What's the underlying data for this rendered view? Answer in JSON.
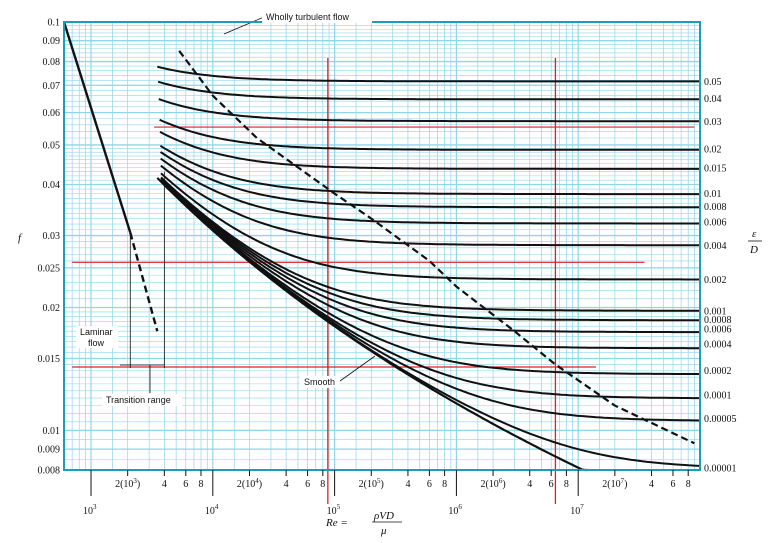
{
  "chart_data": {
    "type": "line",
    "title": "",
    "xscale": "log",
    "yscale": "log",
    "xlim": [
      600,
      100000000
    ],
    "ylim": [
      0.008,
      0.1
    ],
    "grid": true,
    "xlabel": "Re =",
    "xlabel_fraction": {
      "numerator": "ρVD",
      "denominator": "μ"
    },
    "ylabel": "f",
    "right_label": {
      "numerator": "ε",
      "denominator": "D"
    },
    "x_decade_labels": [
      {
        "x": 1000,
        "mantissa": "10",
        "exp": "3"
      },
      {
        "x": 10000,
        "mantissa": "10",
        "exp": "4"
      },
      {
        "x": 100000,
        "mantissa": "10",
        "exp": "5"
      },
      {
        "x": 1000000,
        "mantissa": "10",
        "exp": "6"
      },
      {
        "x": 10000000,
        "mantissa": "10",
        "exp": "7"
      }
    ],
    "x_sub_labels": [
      {
        "x": 2000,
        "text": "2(10",
        "exp": "3",
        "close": ")"
      },
      {
        "x": 4000,
        "text": "4"
      },
      {
        "x": 6000,
        "text": "6"
      },
      {
        "x": 8000,
        "text": "8"
      },
      {
        "x": 20000,
        "text": "2(10",
        "exp": "4",
        "close": ")"
      },
      {
        "x": 40000,
        "text": "4"
      },
      {
        "x": 60000,
        "text": "6"
      },
      {
        "x": 80000,
        "text": "8"
      },
      {
        "x": 200000,
        "text": "2(10",
        "exp": "5",
        "close": ")"
      },
      {
        "x": 400000,
        "text": "4"
      },
      {
        "x": 600000,
        "text": "6"
      },
      {
        "x": 800000,
        "text": "8"
      },
      {
        "x": 2000000,
        "text": "2(10",
        "exp": "6",
        "close": ")"
      },
      {
        "x": 4000000,
        "text": "4"
      },
      {
        "x": 6000000,
        "text": "6"
      },
      {
        "x": 8000000,
        "text": "8"
      },
      {
        "x": 20000000,
        "text": "2(10",
        "exp": "7",
        "close": ")"
      },
      {
        "x": 40000000,
        "text": "4"
      },
      {
        "x": 60000000,
        "text": "6"
      },
      {
        "x": 80000000,
        "text": "8"
      }
    ],
    "y_ticks": [
      {
        "v": 0.1,
        "label": "0.1"
      },
      {
        "v": 0.09,
        "label": "0.09"
      },
      {
        "v": 0.08,
        "label": "0.08"
      },
      {
        "v": 0.07,
        "label": "0.07"
      },
      {
        "v": 0.06,
        "label": "0.06"
      },
      {
        "v": 0.05,
        "label": "0.05"
      },
      {
        "v": 0.04,
        "label": "0.04"
      },
      {
        "v": 0.03,
        "label": "0.03"
      },
      {
        "v": 0.025,
        "label": "0.025"
      },
      {
        "v": 0.02,
        "label": "0.02"
      },
      {
        "v": 0.015,
        "label": "0.015"
      },
      {
        "v": 0.01,
        "label": "0.01"
      },
      {
        "v": 0.009,
        "label": "0.009"
      },
      {
        "v": 0.008,
        "label": "0.008"
      }
    ],
    "roughness_labels": [
      {
        "eps": 0.05,
        "label": "0.05",
        "f": 0.0716
      },
      {
        "eps": 0.04,
        "label": "0.04",
        "f": 0.065
      },
      {
        "eps": 0.03,
        "label": "0.03",
        "f": 0.0571
      },
      {
        "eps": 0.02,
        "label": "0.02",
        "f": 0.0489
      },
      {
        "eps": 0.015,
        "label": "0.015",
        "f": 0.0439
      },
      {
        "eps": 0.01,
        "label": "0.01",
        "f": 0.038
      },
      {
        "eps": 0.008,
        "label": "0.008",
        "f": 0.0353
      },
      {
        "eps": 0.006,
        "label": "0.006",
        "f": 0.0324
      },
      {
        "eps": 0.004,
        "label": "0.004",
        "f": 0.0284
      },
      {
        "eps": 0.002,
        "label": "0.002",
        "f": 0.0234
      },
      {
        "eps": 0.001,
        "label": "0.001",
        "f": 0.0196
      },
      {
        "eps": 0.0008,
        "label": "0.0008",
        "f": 0.0187
      },
      {
        "eps": 0.0006,
        "label": "0.0006",
        "f": 0.0177
      },
      {
        "eps": 0.0004,
        "label": "0.0004",
        "f": 0.0163
      },
      {
        "eps": 0.0002,
        "label": "0.0002",
        "f": 0.014
      },
      {
        "eps": 0.0001,
        "label": "0.0001",
        "f": 0.0122
      },
      {
        "eps": 5e-05,
        "label": "0.00005",
        "f": 0.0107
      },
      {
        "eps": 1e-05,
        "label": "0.00001",
        "f": 0.0081
      }
    ],
    "curve_start_re": 3500,
    "laminar": {
      "x": [
        600,
        2100
      ],
      "y": [
        0.1067,
        0.0305
      ]
    },
    "laminar_dashed": {
      "x": [
        2100,
        3500
      ],
      "y": [
        0.0305,
        0.0175
      ]
    },
    "wholly_turbulent": {
      "x": [
        5300,
        10000,
        23000,
        100000,
        200000,
        600000,
        1000000,
        3000000,
        6500000,
        20000000,
        90000000
      ],
      "y": [
        0.085,
        0.066,
        0.052,
        0.038,
        0.033,
        0.026,
        0.0225,
        0.0175,
        0.0145,
        0.0115,
        0.0093
      ]
    },
    "reference_lines": {
      "vertical_x": [
        88000,
        6500000
      ],
      "horizontal": [
        {
          "y": 0.0553,
          "from": 3300,
          "to": 90000000
        },
        {
          "y": 0.0258,
          "from": 700,
          "to": 35000000
        },
        {
          "y": 0.0143,
          "from": 700,
          "to": 14000000
        }
      ],
      "color": "#e02020"
    },
    "annotations": {
      "wholly_turbulent": "Wholly turbulent flow",
      "laminar_line1": "Laminar",
      "laminar_line2": "flow",
      "transition": "Transition range",
      "smooth": "Smooth"
    },
    "colors": {
      "grid": "#8fd6e8",
      "frame": "#1aa0b5",
      "curves": "#111111",
      "reference": "#e02020"
    }
  }
}
